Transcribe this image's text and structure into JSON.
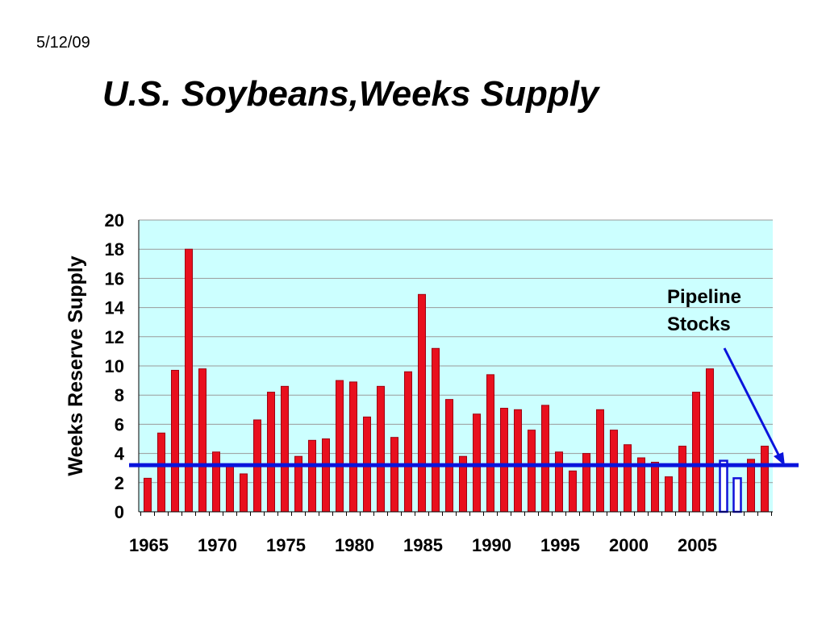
{
  "slide": {
    "date": "5/12/09",
    "title": "U.S. Soybeans,Weeks Supply"
  },
  "chart_data": {
    "type": "bar",
    "title": "",
    "xlabel": "",
    "ylabel": "Weeks Reserve Supply",
    "ylim": [
      0,
      20
    ],
    "yticks": [
      0,
      2,
      4,
      6,
      8,
      10,
      12,
      14,
      16,
      18,
      20
    ],
    "x_tick_labels": [
      "1965",
      "1970",
      "1975",
      "1980",
      "1985",
      "1990",
      "1995",
      "2000",
      "2005"
    ],
    "x": [
      1965,
      1966,
      1967,
      1968,
      1969,
      1970,
      1971,
      1972,
      1973,
      1974,
      1975,
      1976,
      1977,
      1978,
      1979,
      1980,
      1981,
      1982,
      1983,
      1984,
      1985,
      1986,
      1987,
      1988,
      1989,
      1990,
      1991,
      1992,
      1993,
      1994,
      1995,
      1996,
      1997,
      1998,
      1999,
      2000,
      2001,
      2002,
      2003,
      2004,
      2005,
      2006,
      2007,
      2008,
      2009,
      2010
    ],
    "values": [
      2.3,
      5.4,
      9.7,
      18.0,
      9.8,
      4.1,
      3.1,
      2.6,
      6.3,
      8.2,
      8.6,
      3.8,
      4.9,
      5.0,
      9.0,
      8.9,
      6.5,
      8.6,
      5.1,
      9.6,
      14.9,
      11.2,
      7.7,
      3.8,
      6.7,
      9.4,
      7.1,
      7.0,
      5.6,
      7.3,
      4.1,
      2.8,
      4.0,
      7.0,
      5.6,
      4.6,
      3.7,
      3.4,
      2.4,
      4.5,
      8.2,
      9.8,
      3.5,
      2.3,
      3.6,
      4.5
    ],
    "outlined_years": [
      2007,
      2008
    ],
    "reference_line": 3.2,
    "grid": true,
    "annotation": {
      "lines": [
        "Pipeline",
        "Stocks"
      ]
    },
    "colors": {
      "bar_fill": "#e8101e",
      "bar_edge": "#a00010",
      "outlined_edge": "#1010d8",
      "plot_background": "#ccffff",
      "reference_line": "#0a14dc",
      "arrow": "#0a14dc",
      "gridline": "#9a9a9a"
    }
  }
}
